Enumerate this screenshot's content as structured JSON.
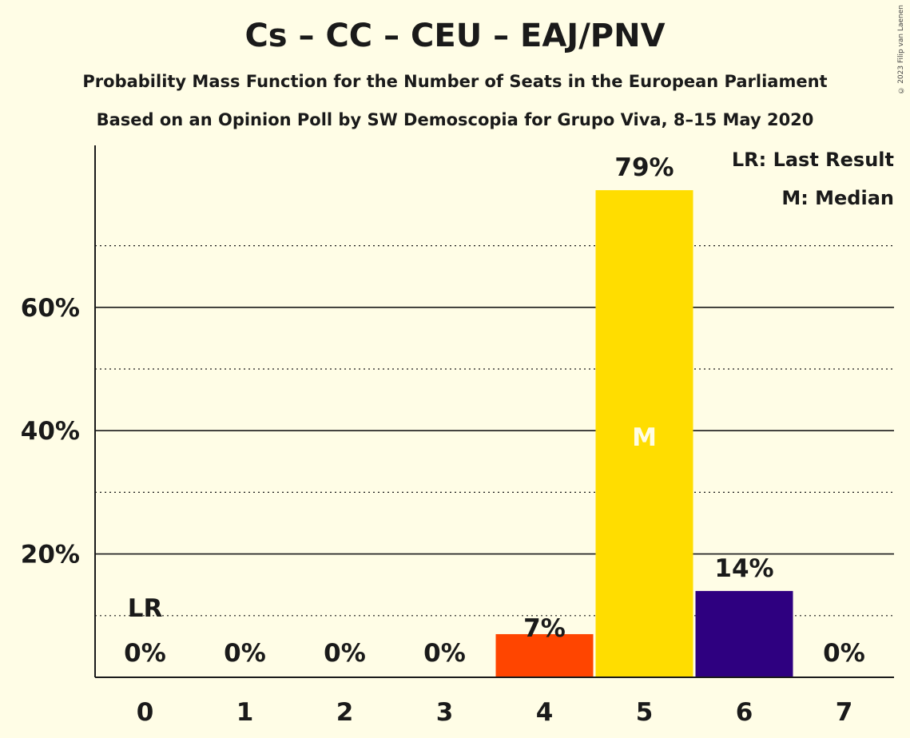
{
  "chart_data": {
    "type": "bar",
    "title": "Cs – CC – CEU – EAJ/PNV",
    "subtitle": "Probability Mass Function for the Number of Seats in the European Parliament",
    "subtitle2": "Based on an Opinion Poll by SW Demoscopia for Grupo Viva, 8–15 May 2020",
    "copyright": "© 2023 Filip van Laenen",
    "legend": {
      "placement": "top-right",
      "last_result": "LR: Last Result",
      "median": "M: Median"
    },
    "categories": [
      "0",
      "1",
      "2",
      "3",
      "4",
      "5",
      "6",
      "7"
    ],
    "values": [
      0,
      0,
      0,
      0,
      7,
      79,
      14,
      0
    ],
    "value_labels": [
      "0%",
      "0%",
      "0%",
      "0%",
      "7%",
      "79%",
      "14%",
      "0%"
    ],
    "bar_colors": [
      "#FF4500",
      "#FF4500",
      "#FF4500",
      "#FF4500",
      "#FF4500",
      "#FFDD00",
      "#2E0080",
      "#2E0080"
    ],
    "last_result_index": 0,
    "last_result_marker": "LR",
    "median_index": 5,
    "median_marker": "M",
    "ylim": [
      0,
      86
    ],
    "yticks": [
      20,
      40,
      60
    ],
    "ytick_labels": [
      "20%",
      "40%",
      "60%"
    ],
    "minor_gridlines": [
      10,
      30,
      50,
      70
    ],
    "grid": true
  }
}
